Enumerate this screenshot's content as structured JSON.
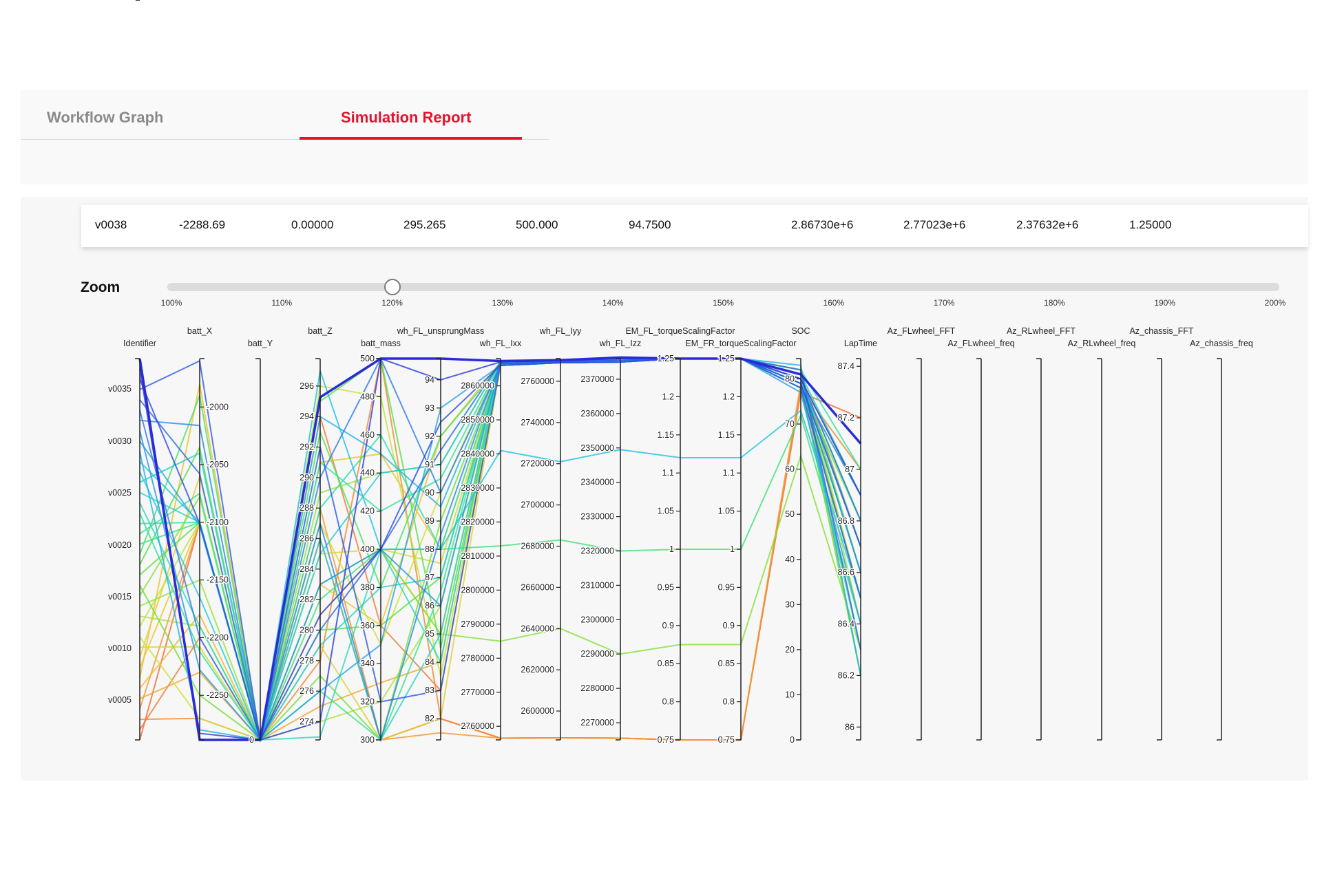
{
  "tabs": [
    {
      "label": "Workflow Graph",
      "active": false
    },
    {
      "label": "Simulation Report",
      "active": true
    }
  ],
  "colors": {
    "accent": "#e8112d",
    "inactive_tab": "#8a8a8a"
  },
  "selected_row": [
    "v0038",
    "-2288.69",
    "0.00000",
    "295.265",
    "500.000",
    "94.7500",
    "2.86730e+6",
    "2.77023e+6",
    "2.37632e+6",
    "1.25000"
  ],
  "zoom": {
    "label": "Zoom",
    "value_percent": 120,
    "ticks": [
      "100%",
      "110%",
      "120%",
      "130%",
      "140%",
      "150%",
      "160%",
      "170%",
      "180%",
      "190%",
      "200%"
    ]
  },
  "chart_data": {
    "type": "parallel-coordinates",
    "axes": [
      {
        "label": "Identifier",
        "ticks": [
          "v0035",
          "v0030",
          "v0025",
          "v0020",
          "v0015",
          "v0010",
          "v0005"
        ],
        "range": [
          1,
          38
        ]
      },
      {
        "label": "batt_X",
        "ticks": [
          "-2000",
          "-2050",
          "-2100",
          "-2150",
          "-2200",
          "-2250"
        ],
        "range": [
          -2288.69,
          -1958
        ]
      },
      {
        "label": "batt_Y",
        "ticks": [
          "0"
        ],
        "range": [
          0,
          1
        ]
      },
      {
        "label": "batt_Z",
        "ticks": [
          "296",
          "294",
          "292",
          "290",
          "288",
          "286",
          "284",
          "282",
          "280",
          "278",
          "276",
          "274"
        ],
        "range": [
          272.8,
          297.8
        ]
      },
      {
        "label": "batt_mass",
        "ticks": [
          "500",
          "480",
          "460",
          "440",
          "420",
          "400",
          "380",
          "360",
          "340",
          "320",
          "300"
        ],
        "range": [
          300,
          500
        ]
      },
      {
        "label": "wh_FL_unsprungMass",
        "ticks": [
          "94",
          "93",
          "92",
          "91",
          "90",
          "89",
          "88",
          "87",
          "86",
          "85",
          "84",
          "83",
          "82"
        ],
        "range": [
          81.25,
          94.75
        ]
      },
      {
        "label": "wh_FL_Ixx",
        "ticks": [
          "2860000",
          "2850000",
          "2840000",
          "2830000",
          "2820000",
          "2810000",
          "2800000",
          "2790000",
          "2780000",
          "2770000",
          "2760000"
        ],
        "range": [
          2756000,
          2868000
        ]
      },
      {
        "label": "wh_FL_Iyy",
        "ticks": [
          "2760000",
          "2740000",
          "2720000",
          "2700000",
          "2680000",
          "2660000",
          "2640000",
          "2620000",
          "2600000"
        ],
        "range": [
          2586000,
          2771000
        ]
      },
      {
        "label": "wh_FL_Izz",
        "ticks": [
          "2370000",
          "2360000",
          "2350000",
          "2340000",
          "2330000",
          "2320000",
          "2310000",
          "2300000",
          "2290000",
          "2280000",
          "2270000"
        ],
        "range": [
          2265000,
          2376000
        ]
      },
      {
        "label": "EM_FL_torqueScalingFactor",
        "ticks": [
          "1.25",
          "1.2",
          "1.15",
          "1.1",
          "1.05",
          "1",
          "0.95",
          "0.9",
          "0.85",
          "0.8",
          "0.75"
        ],
        "range": [
          0.75,
          1.25
        ]
      },
      {
        "label": "EM_FR_torqueScalingFactor",
        "ticks": [
          "1.25",
          "1.2",
          "1.15",
          "1.1",
          "1.05",
          "1",
          "0.95",
          "0.9",
          "0.85",
          "0.8",
          "0.75"
        ],
        "range": [
          0.75,
          1.25
        ]
      },
      {
        "label": "SOC",
        "ticks": [
          "80",
          "70",
          "60",
          "50",
          "40",
          "30",
          "20",
          "10",
          "0"
        ],
        "range": [
          0,
          84.5
        ]
      },
      {
        "label": "LapTime",
        "ticks": [
          "87.4",
          "87.2",
          "87",
          "86.8",
          "86.6",
          "86.4",
          "86.2",
          "86"
        ],
        "range": [
          85.95,
          87.43
        ]
      },
      {
        "label": "Az_FLwheel_FFT",
        "ticks": [],
        "range": [
          0,
          1
        ]
      },
      {
        "label": "Az_FLwheel_freq",
        "ticks": [],
        "range": [
          0,
          1
        ]
      },
      {
        "label": "Az_RLwheel_FFT",
        "ticks": [],
        "range": [
          0,
          1
        ]
      },
      {
        "label": "Az_RLwheel_freq",
        "ticks": [],
        "range": [
          0,
          1
        ]
      },
      {
        "label": "Az_chassis_FFT",
        "ticks": [],
        "range": [
          0,
          1
        ]
      },
      {
        "label": "Az_chassis_freq",
        "ticks": [],
        "range": [
          0,
          1
        ]
      }
    ],
    "color_by": "Identifier",
    "colorscale": [
      "#2a2bd8",
      "#2e7ee6",
      "#1fc8e0",
      "#2ee2a0",
      "#5ee036",
      "#c9e23a",
      "#f5b92c",
      "#ef6a34"
    ],
    "lines": [
      {
        "id": 38,
        "values": [
          38,
          -2288.69,
          0,
          295.265,
          500,
          94.75,
          2867300,
          2770230,
          2376320,
          1.25,
          1.25,
          81,
          87.1
        ]
      },
      {
        "id": 37,
        "values": [
          37,
          -2283,
          0,
          274,
          500,
          94,
          2867000,
          2770000,
          2376000,
          1.25,
          1.25,
          80,
          86.9
        ]
      },
      {
        "id": 36,
        "values": [
          36,
          -2101,
          0,
          281,
          400,
          92.5,
          2866000,
          2769000,
          2375000,
          1.25,
          1.25,
          79,
          86.7
        ]
      },
      {
        "id": 35,
        "values": [
          35,
          -1960,
          0,
          292,
          320,
          83,
          2866500,
          2769500,
          2375500,
          1.25,
          1.25,
          78,
          86.5
        ]
      },
      {
        "id": 34,
        "values": [
          34,
          -2058,
          0,
          280,
          400,
          91.5,
          2867000,
          2770000,
          2376000,
          1.25,
          1.25,
          82,
          86.3
        ]
      },
      {
        "id": 33,
        "values": [
          33,
          -2200,
          0,
          290,
          500,
          90,
          2866000,
          2769000,
          2375000,
          1.25,
          1.25,
          80,
          86.8
        ]
      },
      {
        "id": 32,
        "values": [
          32,
          -2016,
          0,
          287,
          300,
          88.5,
          2866500,
          2769500,
          2375500,
          1.25,
          1.25,
          79,
          86.6
        ]
      },
      {
        "id": 31,
        "values": [
          31,
          -2228,
          0,
          283,
          400,
          86,
          2867000,
          2770000,
          2376000,
          1.25,
          1.25,
          78,
          86.9
        ]
      },
      {
        "id": 30,
        "values": [
          30,
          -2103,
          0,
          276,
          350,
          93,
          2866000,
          2769000,
          2375000,
          1.25,
          1.25,
          77,
          86.4
        ]
      },
      {
        "id": 29,
        "values": [
          29,
          -2280,
          0,
          294,
          450,
          89.5,
          2866500,
          2769500,
          2375500,
          1.25,
          1.25,
          83,
          86.2
        ]
      },
      {
        "id": 28,
        "values": [
          28,
          -2100,
          0,
          297,
          400,
          88,
          2841000,
          2721000,
          2349500,
          1.12,
          1.12,
          73,
          86.5
        ]
      },
      {
        "id": 27,
        "values": [
          27,
          -2165,
          0,
          285,
          440,
          91,
          2867000,
          2770000,
          2376000,
          1.25,
          1.25,
          80,
          86.7
        ]
      },
      {
        "id": 26,
        "values": [
          26,
          -2040,
          0,
          279,
          380,
          87,
          2866000,
          2769000,
          2375000,
          1.25,
          1.25,
          81,
          86.9
        ]
      },
      {
        "id": 25,
        "values": [
          25,
          -2100,
          0,
          286,
          300,
          85,
          2866500,
          2769500,
          2375500,
          1.25,
          1.25,
          79,
          86.6
        ]
      },
      {
        "id": 24,
        "values": [
          24,
          -2190,
          0,
          273,
          400,
          84,
          2867000,
          2770000,
          2376000,
          1.25,
          1.25,
          78,
          86.3
        ]
      },
      {
        "id": 23,
        "values": [
          23,
          -2212,
          0,
          288,
          460,
          88,
          2866000,
          2769000,
          2375000,
          1.25,
          1.25,
          80,
          86.8
        ]
      },
      {
        "id": 22,
        "values": [
          22,
          -2100,
          0,
          291,
          420,
          90.5,
          2866500,
          2769500,
          2375500,
          1.25,
          1.25,
          82,
          87.0
        ]
      },
      {
        "id": 21,
        "values": [
          21,
          -2075,
          0,
          276,
          300,
          86.5,
          2867000,
          2770000,
          2376000,
          1.25,
          1.25,
          79,
          86.5
        ]
      },
      {
        "id": 20,
        "values": [
          20,
          -2100,
          0,
          282,
          400,
          88,
          2813000,
          2683000,
          2320000,
          1.0,
          1.0,
          72,
          86.4
        ]
      },
      {
        "id": 19,
        "values": [
          19,
          -1990,
          0,
          293,
          380,
          92,
          2866000,
          2769000,
          2375000,
          1.25,
          1.25,
          80,
          86.7
        ]
      },
      {
        "id": 18,
        "values": [
          18,
          -2035,
          0,
          295,
          500,
          84.5,
          2866500,
          2769500,
          2375500,
          1.25,
          1.25,
          81,
          86.6
        ]
      },
      {
        "id": 17,
        "values": [
          17,
          -2100,
          0,
          280,
          360,
          87,
          2867000,
          2770000,
          2376000,
          1.25,
          1.25,
          79,
          86.2
        ]
      },
      {
        "id": 16,
        "values": [
          16,
          -2250,
          0,
          277,
          300,
          89,
          2866000,
          2769000,
          2375000,
          1.25,
          1.25,
          78,
          86.8
        ]
      },
      {
        "id": 15,
        "values": [
          15,
          -2078,
          0,
          283,
          400,
          85,
          2785000,
          2640000,
          2290000,
          0.875,
          0.875,
          63,
          86.3
        ]
      },
      {
        "id": 14,
        "values": [
          14,
          -2150,
          0,
          289,
          440,
          91,
          2867000,
          2770000,
          2376000,
          1.25,
          1.25,
          80,
          86.9
        ]
      },
      {
        "id": 13,
        "values": [
          13,
          -2190,
          0,
          274,
          320,
          86,
          2866000,
          2769000,
          2375000,
          1.25,
          1.25,
          82,
          86.4
        ]
      },
      {
        "id": 12,
        "values": [
          12,
          -2100,
          0,
          296,
          480,
          83.5,
          2866500,
          2769500,
          2375500,
          1.25,
          1.25,
          79,
          86.6
        ]
      },
      {
        "id": 11,
        "values": [
          11,
          -2270,
          0,
          287,
          350,
          90,
          2867000,
          2770000,
          2376000,
          1.25,
          1.25,
          80,
          86.7
        ]
      },
      {
        "id": 10,
        "values": [
          10,
          -2208,
          0,
          285,
          400,
          87.5,
          2866000,
          2769000,
          2375000,
          1.25,
          1.25,
          81,
          86.5
        ]
      },
      {
        "id": 9,
        "values": [
          9,
          -2060,
          0,
          279,
          300,
          82,
          2866500,
          2769500,
          2375500,
          1.25,
          1.25,
          78,
          86.9
        ]
      },
      {
        "id": 8,
        "values": [
          8,
          -2100,
          0,
          283,
          360,
          92,
          2867000,
          2770000,
          2376000,
          1.25,
          1.25,
          80,
          86.3
        ]
      },
      {
        "id": 7,
        "values": [
          7,
          -1980,
          0,
          291,
          450,
          88,
          2866000,
          2769000,
          2375000,
          1.25,
          1.25,
          79,
          86.6
        ]
      },
      {
        "id": 6,
        "values": [
          6,
          -2180,
          0,
          281,
          400,
          85,
          2866500,
          2769500,
          2375500,
          1.25,
          1.25,
          82,
          86.2
        ]
      },
      {
        "id": 5,
        "values": [
          5,
          -2230,
          0,
          275,
          330,
          84,
          2867000,
          2770000,
          2376000,
          1.25,
          1.25,
          80,
          86.8
        ]
      },
      {
        "id": 4,
        "values": [
          4,
          -2100,
          0,
          288,
          300,
          81.5,
          2756500,
          2587000,
          2265500,
          0.75,
          0.75,
          79,
          86.5
        ]
      },
      {
        "id": 3,
        "values": [
          3,
          -2270,
          0,
          278,
          500,
          82,
          2756500,
          2587000,
          2265500,
          0.75,
          0.75,
          78,
          87.0
        ]
      },
      {
        "id": 2,
        "values": [
          2,
          -2200,
          0,
          294,
          360,
          83,
          2866000,
          2769000,
          2375000,
          1.25,
          1.25,
          81,
          86.7
        ]
      },
      {
        "id": 1,
        "values": [
          1,
          -2100,
          0,
          286,
          300,
          82,
          2756500,
          2587000,
          2265500,
          0.75,
          0.75,
          77,
          87.2
        ]
      }
    ]
  }
}
